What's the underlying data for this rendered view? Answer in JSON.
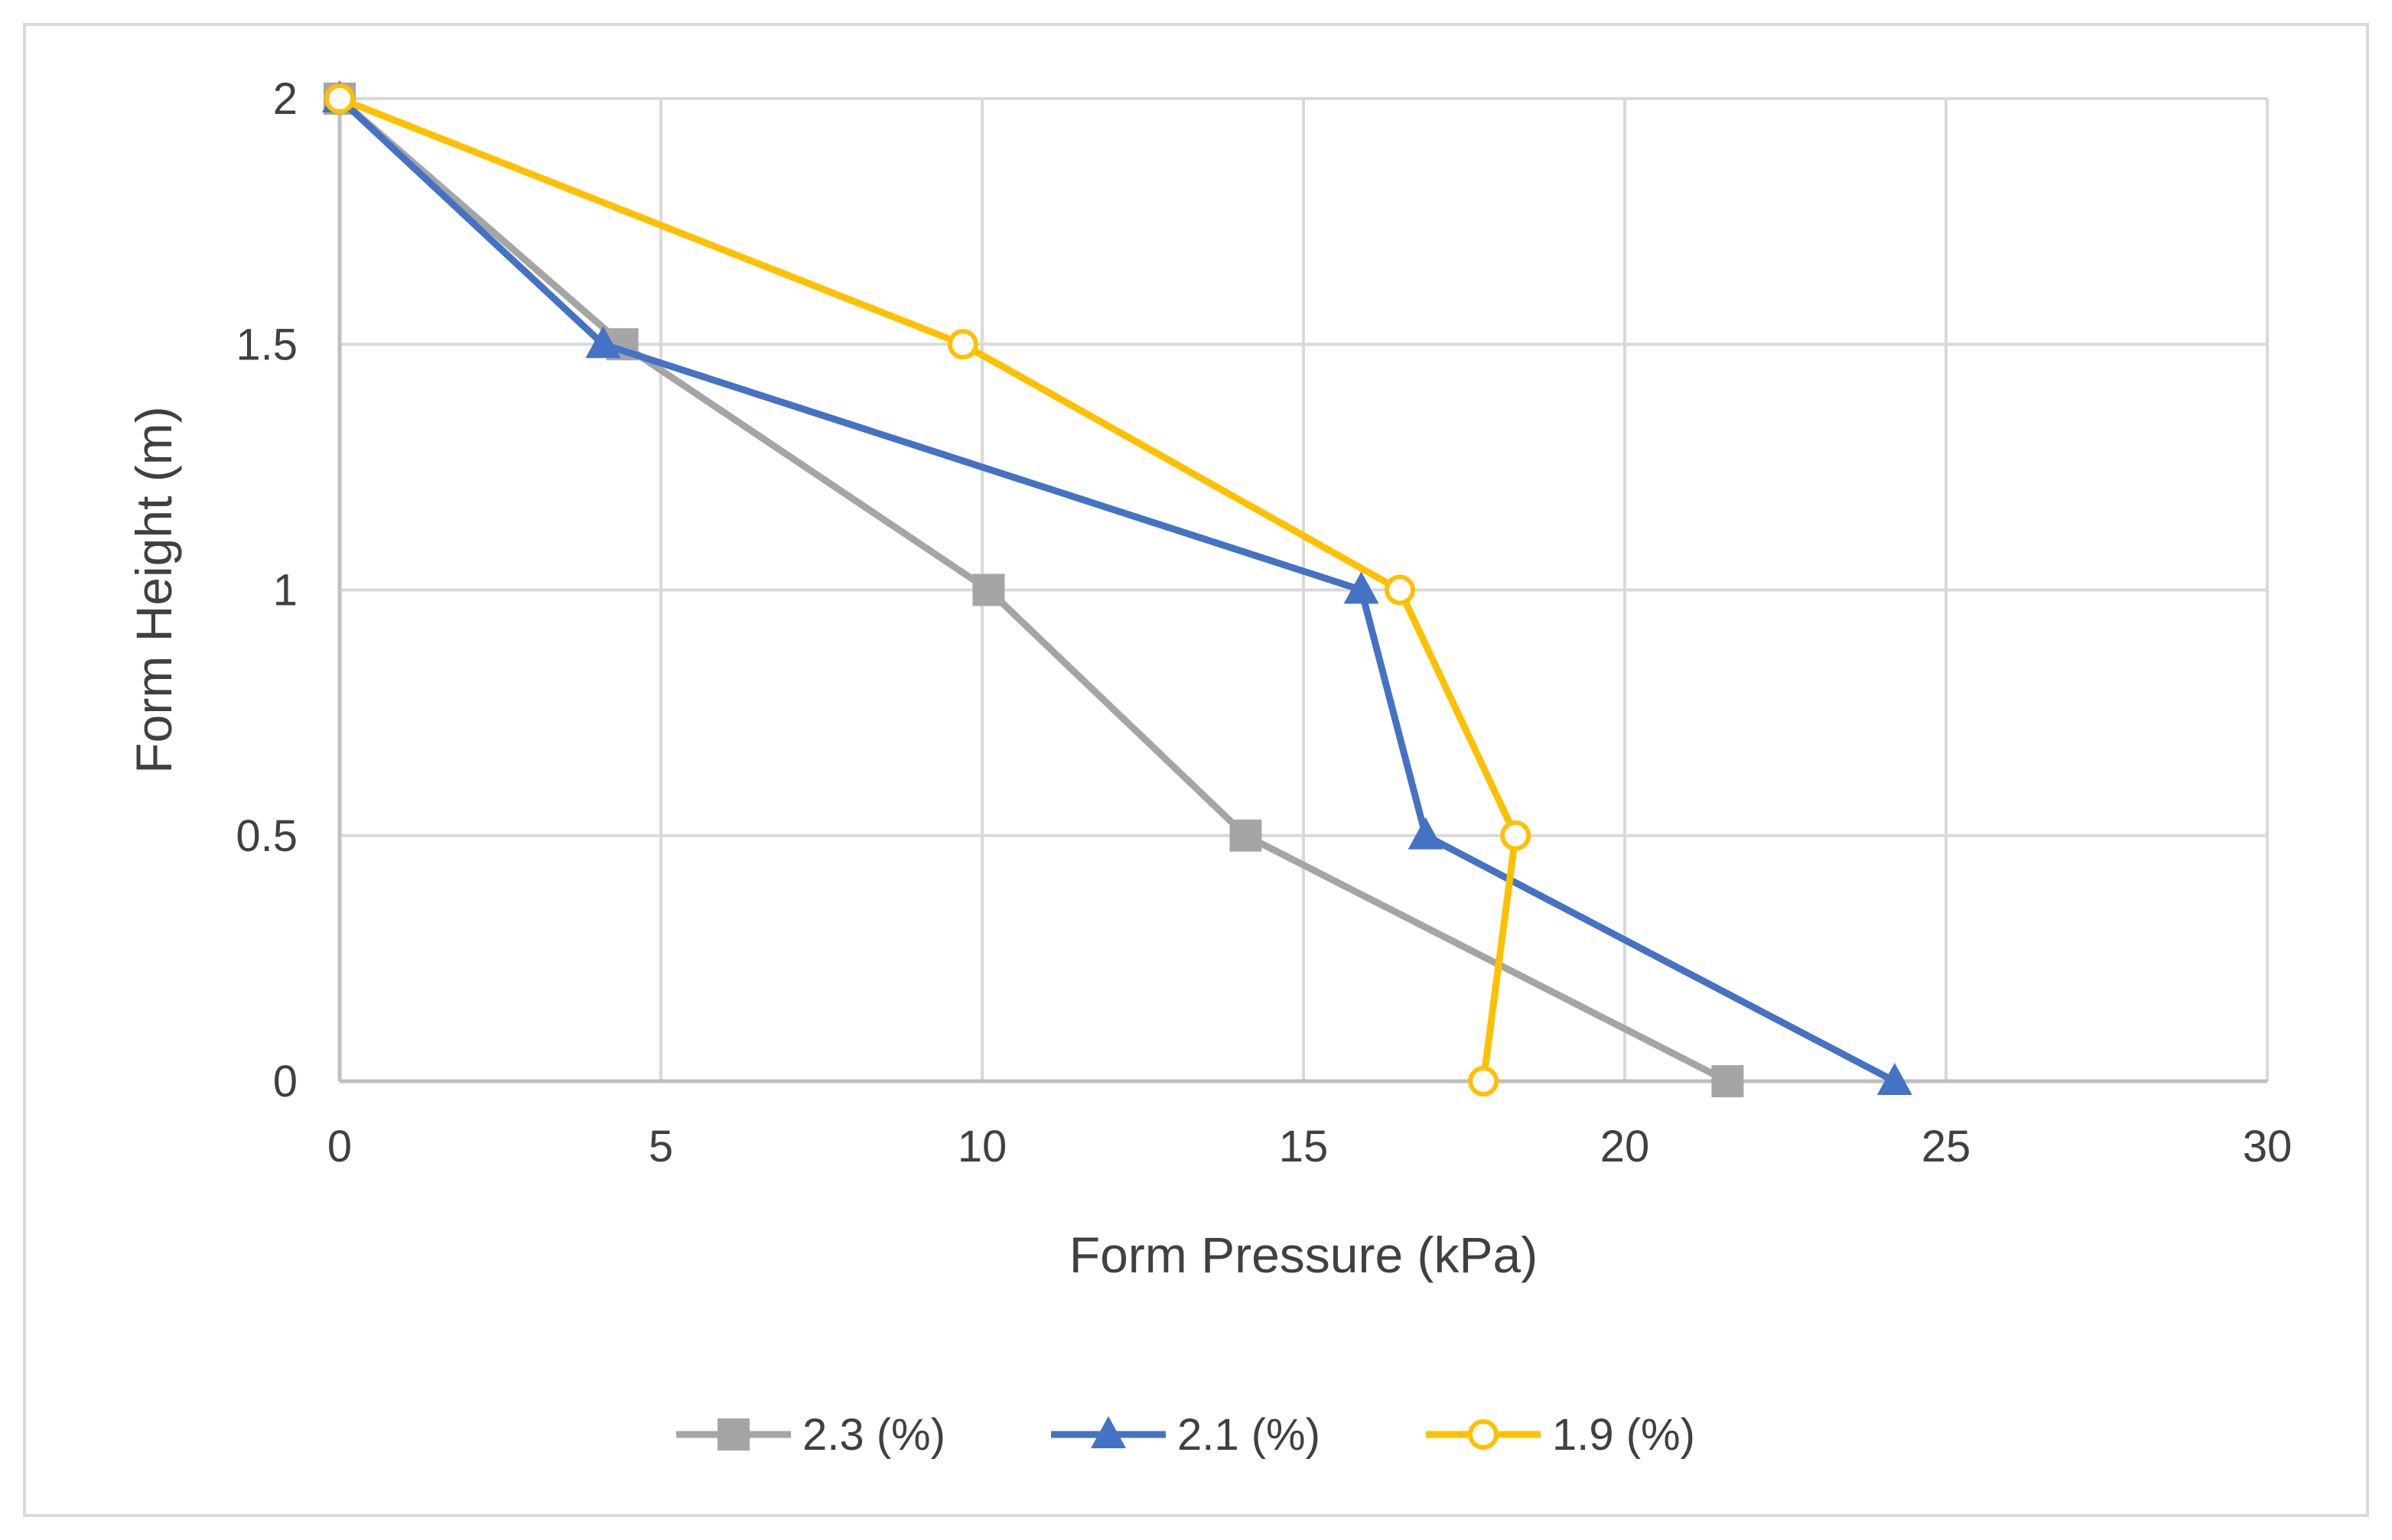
{
  "chart_data": {
    "type": "line",
    "title": "",
    "xlabel": "Form Pressure (kPa)",
    "ylabel": "Form Height (m)",
    "xlim": [
      0,
      30
    ],
    "ylim": [
      0,
      2
    ],
    "x_ticks": [
      0,
      5,
      10,
      15,
      20,
      25,
      30
    ],
    "y_ticks": [
      0,
      0.5,
      1,
      1.5,
      2
    ],
    "x_tick_labels": [
      "0",
      "5",
      "10",
      "15",
      "20",
      "25",
      "30"
    ],
    "y_tick_labels": [
      "0",
      "0.5",
      "1",
      "1.5",
      "2"
    ],
    "grid": true,
    "legend_position": "bottom",
    "series": [
      {
        "name": "2.3 (%)",
        "color": "#a5a5a5",
        "marker": "square",
        "x": [
          0,
          4.4,
          10.1,
          14.1,
          21.6
        ],
        "y": [
          2,
          1.5,
          1,
          0.5,
          0
        ]
      },
      {
        "name": "2.1 (%)",
        "color": "#4472c4",
        "marker": "triangle",
        "x": [
          0,
          4.1,
          15.9,
          16.9,
          24.2
        ],
        "y": [
          2,
          1.5,
          1,
          0.5,
          0
        ]
      },
      {
        "name": "1.9 (%)",
        "color": "#ffc000",
        "marker": "circle-open",
        "x": [
          0,
          9.7,
          16.5,
          18.3,
          17.8
        ],
        "y": [
          2,
          1.5,
          1,
          0.5,
          0
        ]
      }
    ]
  }
}
